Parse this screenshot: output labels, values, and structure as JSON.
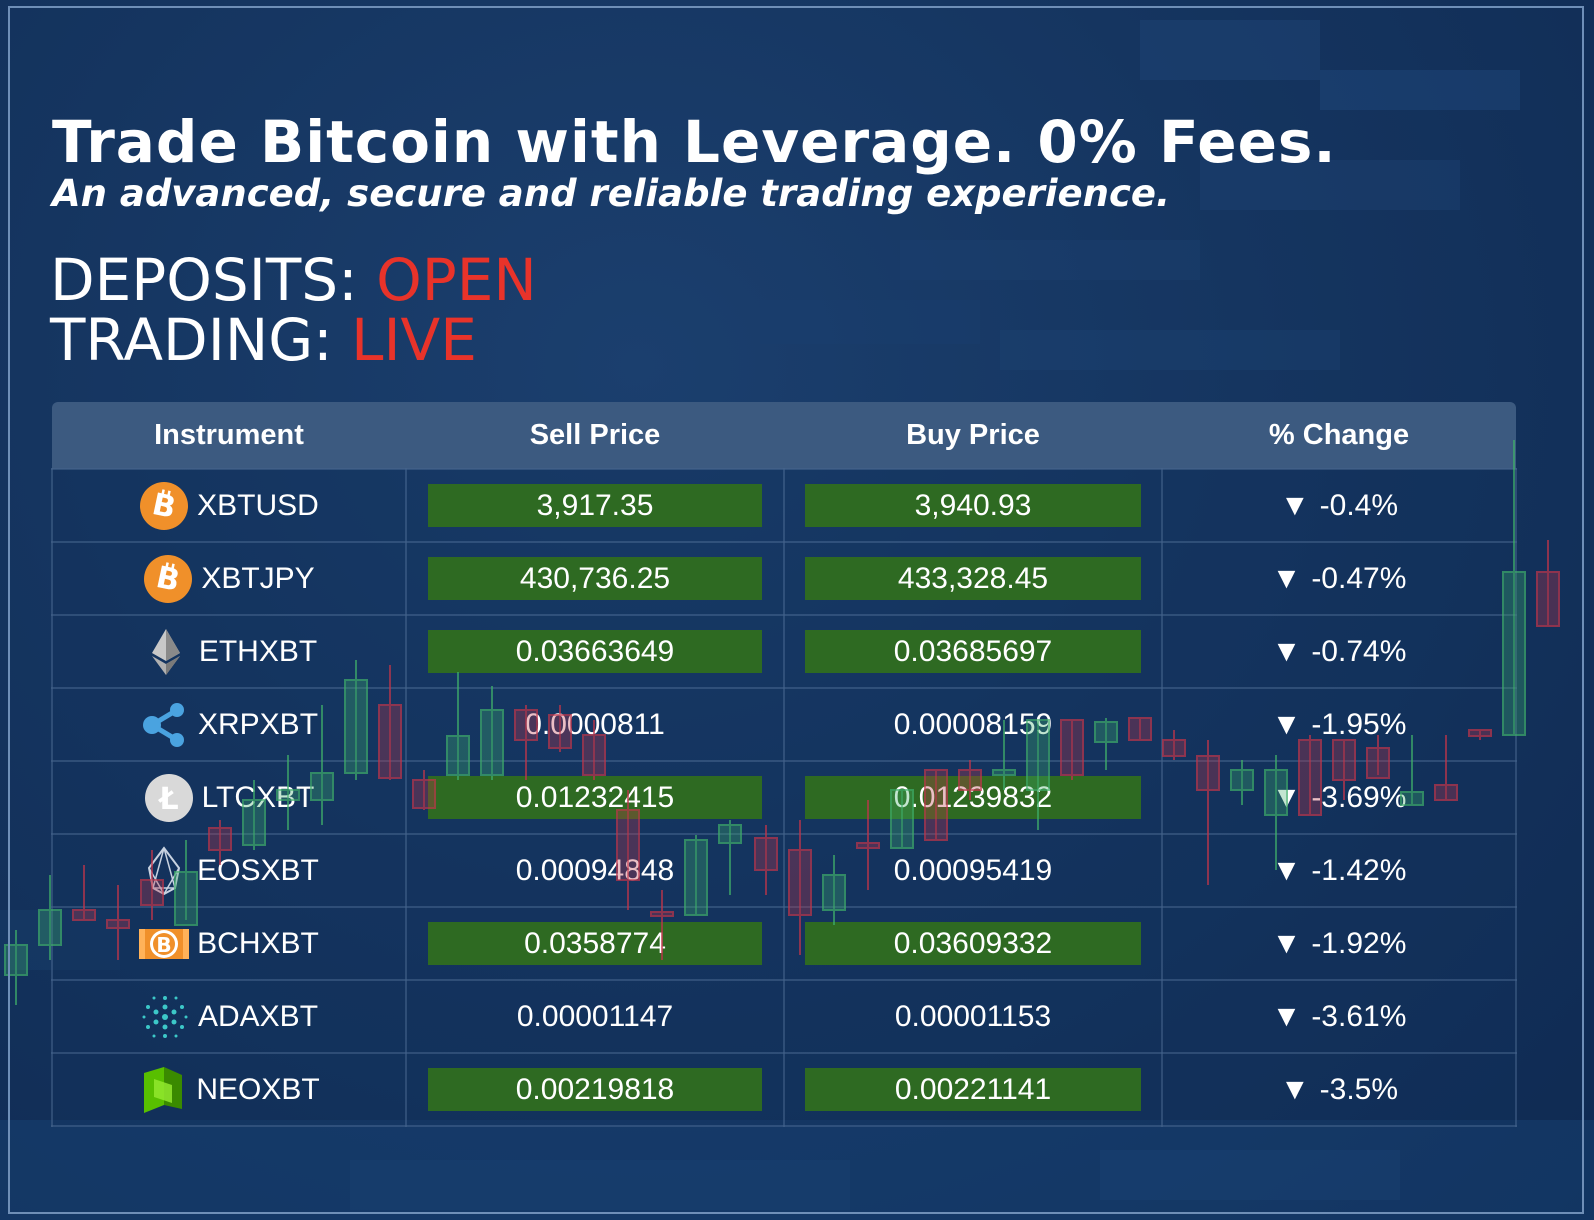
{
  "headline": "Trade Bitcoin with Leverage. 0% Fees.",
  "subheadline": "An advanced, secure and reliable trading experience.",
  "status": {
    "deposits_label": "DEPOSITS: ",
    "deposits_value": "OPEN",
    "trading_label": "TRADING: ",
    "trading_value": "LIVE"
  },
  "colors": {
    "accent_red": "#e8332a",
    "highlight_green": "#2e6a22",
    "header_bg": "#3c5a80"
  },
  "table": {
    "headers": [
      "Instrument",
      "Sell Price",
      "Buy Price",
      "% Change"
    ],
    "rows": [
      {
        "instrument": "XBTUSD",
        "icon": "bitcoin-icon",
        "sell": "3,917.35",
        "buy": "3,940.93",
        "change": "-0.4%",
        "highlighted": true
      },
      {
        "instrument": "XBTJPY",
        "icon": "bitcoin-icon",
        "sell": "430,736.25",
        "buy": "433,328.45",
        "change": "-0.47%",
        "highlighted": true
      },
      {
        "instrument": "ETHXBT",
        "icon": "ethereum-icon",
        "sell": "0.03663649",
        "buy": "0.03685697",
        "change": "-0.74%",
        "highlighted": true
      },
      {
        "instrument": "XRPXBT",
        "icon": "ripple-icon",
        "sell": "0.0000811",
        "buy": "0.00008159",
        "change": "-1.95%",
        "highlighted": false
      },
      {
        "instrument": "LTCXBT",
        "icon": "litecoin-icon",
        "sell": "0.01232415",
        "buy": "0.01239832",
        "change": "-3.69%",
        "highlighted": true
      },
      {
        "instrument": "EOSXBT",
        "icon": "eos-icon",
        "sell": "0.00094848",
        "buy": "0.00095419",
        "change": "-1.42%",
        "highlighted": false
      },
      {
        "instrument": "BCHXBT",
        "icon": "bitcoin-cash-icon",
        "sell": "0.0358774",
        "buy": "0.03609332",
        "change": "-1.92%",
        "highlighted": true
      },
      {
        "instrument": "ADAXBT",
        "icon": "cardano-icon",
        "sell": "0.00001147",
        "buy": "0.00001153",
        "change": "-3.61%",
        "highlighted": false
      },
      {
        "instrument": "NEOXBT",
        "icon": "neo-icon",
        "sell": "0.00219818",
        "buy": "0.00221141",
        "change": "-3.5%",
        "highlighted": true
      }
    ],
    "change_arrow": "▼"
  }
}
